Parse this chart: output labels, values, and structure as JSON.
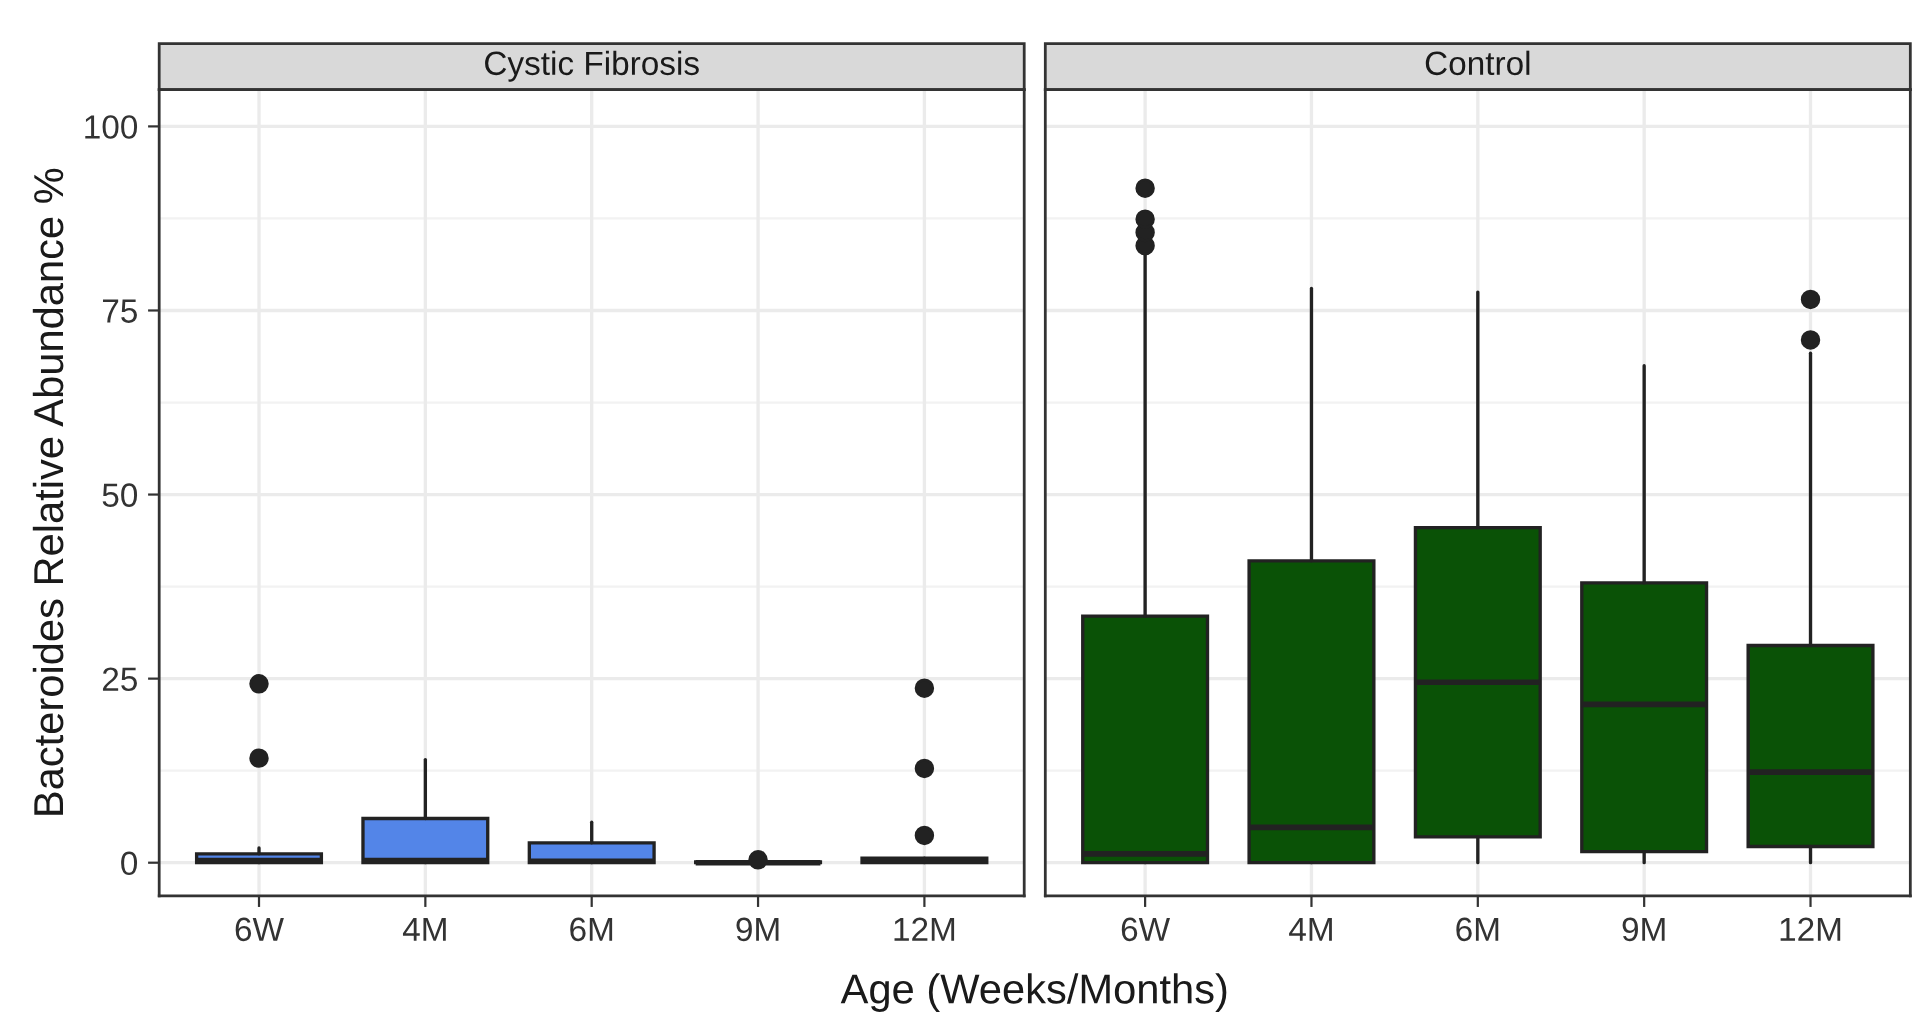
{
  "chart_data": [
    {
      "type": "box",
      "title": "Cystic Fibrosis",
      "xlabel": "Age (Weeks/Months)",
      "ylabel": "Bacteroides Relative Abundance %",
      "categories": [
        "6W",
        "4M",
        "6M",
        "9M",
        "12M"
      ],
      "color": "#5385e8",
      "ylim": [
        -4.5,
        105
      ],
      "yticks": [
        0,
        25,
        50,
        75,
        100
      ],
      "grid": true,
      "boxes": [
        {
          "low": 0,
          "q1": 0,
          "median": 0.3,
          "q3": 1.2,
          "high": 2,
          "outliers": [
            14.2,
            24.3
          ]
        },
        {
          "low": 0,
          "q1": 0,
          "median": 0.3,
          "q3": 6,
          "high": 14
        },
        {
          "low": 0,
          "q1": 0,
          "median": 0.2,
          "q3": 2.7,
          "high": 5.5
        },
        {
          "low": 0,
          "q1": 0,
          "median": 0,
          "q3": 0.1,
          "high": 0.2,
          "outliers": [
            0.4
          ]
        },
        {
          "low": 0,
          "q1": 0,
          "median": 0.3,
          "q3": 0.6,
          "high": 0.6,
          "outliers": [
            3.7,
            12.8,
            23.7
          ]
        }
      ]
    },
    {
      "type": "box",
      "title": "Control",
      "categories": [
        "6W",
        "4M",
        "6M",
        "9M",
        "12M"
      ],
      "color": "#0a5206",
      "ylim": [
        -4.5,
        105
      ],
      "yticks": [
        0,
        25,
        50,
        75,
        100
      ],
      "grid": true,
      "tick_labels": "x",
      "boxes": [
        {
          "low": 0,
          "q1": 0,
          "median": 1.2,
          "q3": 33.5,
          "high": 83.5,
          "outliers": [
            83.8,
            85.6,
            87.4,
            91.6
          ]
        },
        {
          "low": 0,
          "q1": 0,
          "median": 4.8,
          "q3": 41,
          "high": 78
        },
        {
          "low": 0,
          "q1": 3.5,
          "median": 24.5,
          "q3": 45.5,
          "high": 77.5
        },
        {
          "low": 0,
          "q1": 1.5,
          "median": 21.5,
          "q3": 38,
          "high": 67.5
        },
        {
          "low": 0,
          "q1": 2.2,
          "median": 12.3,
          "q3": 29.5,
          "high": 69.2,
          "outliers": [
            71,
            76.5
          ]
        }
      ]
    }
  ]
}
